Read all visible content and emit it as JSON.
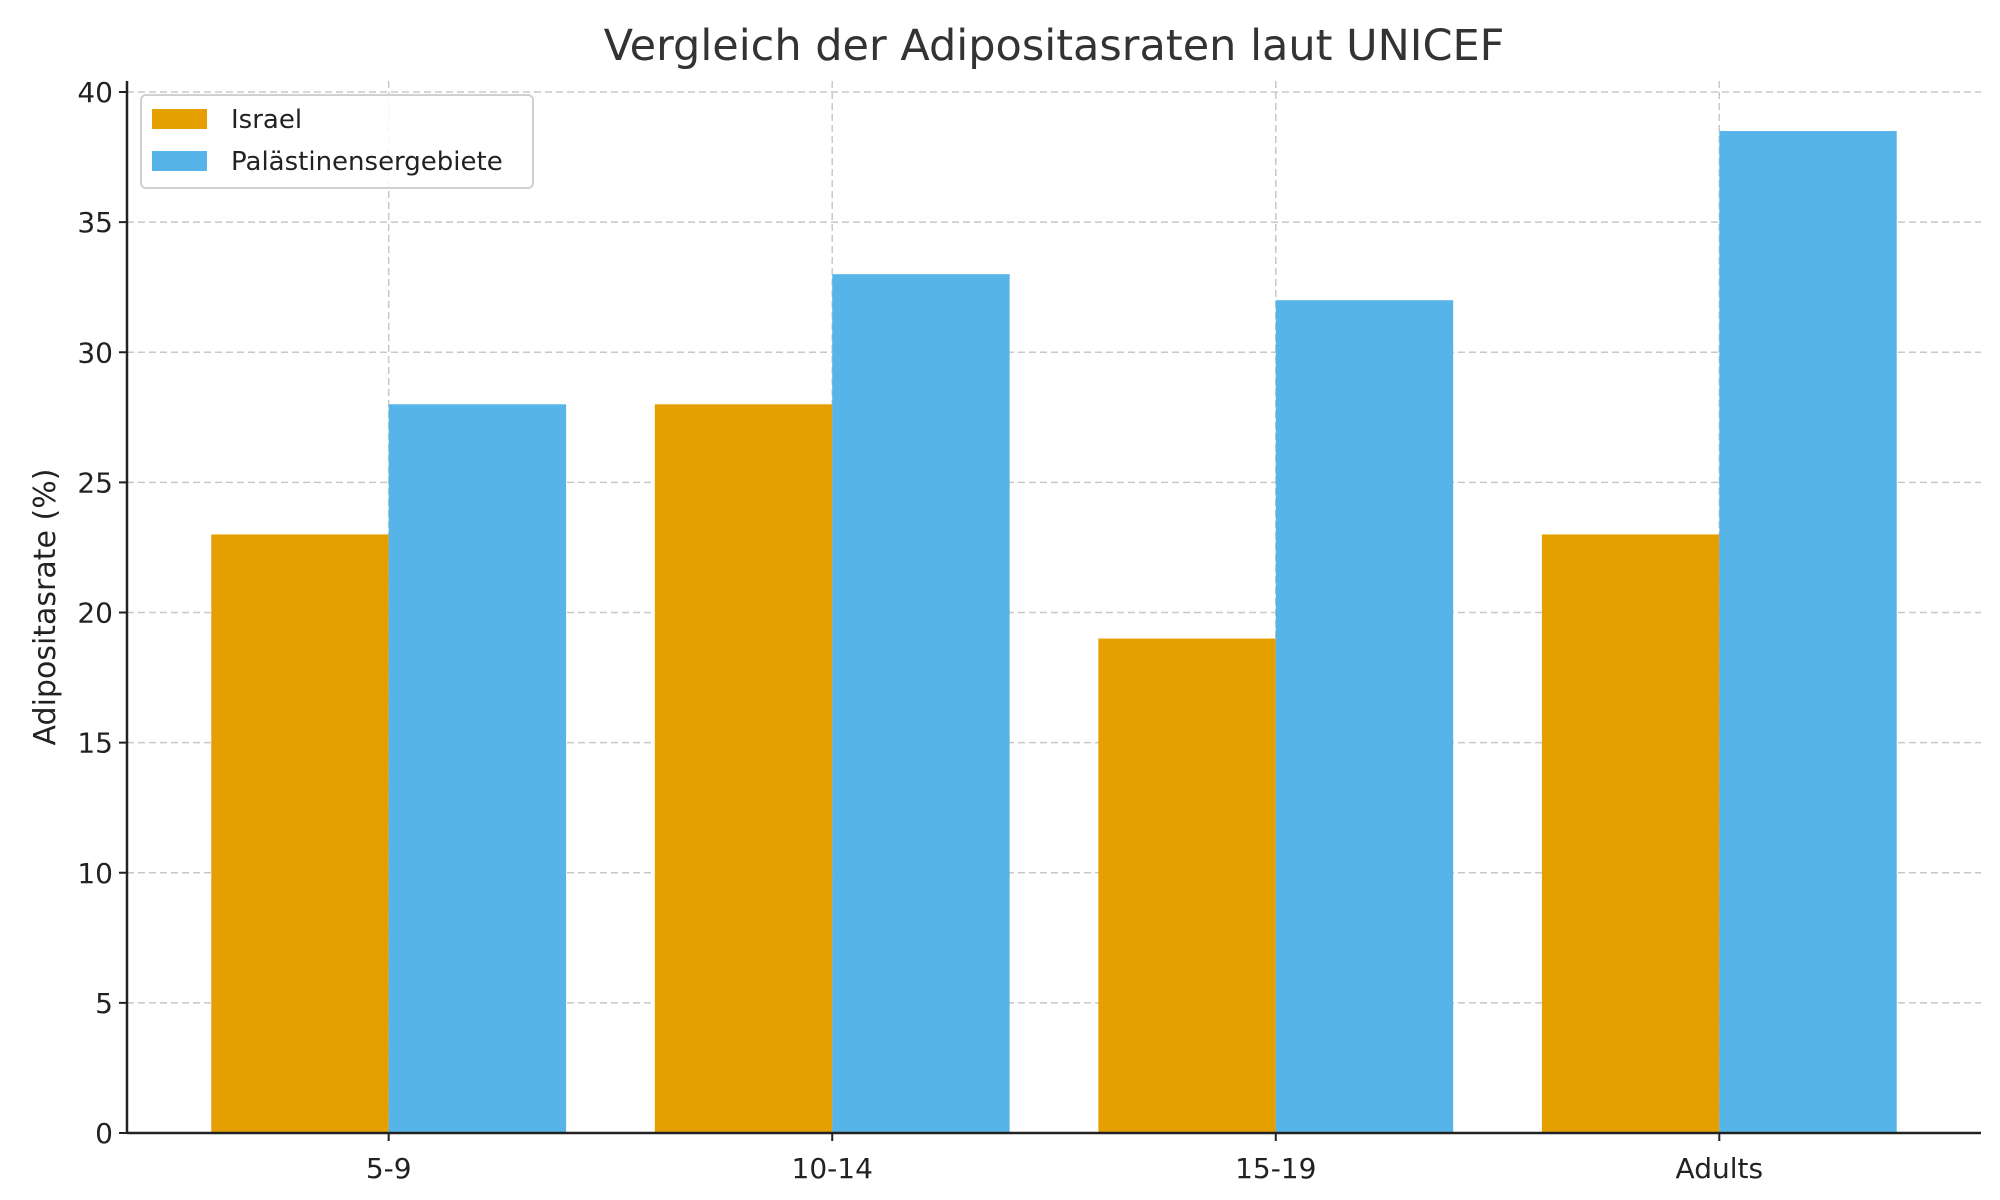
{
  "chart_data": {
    "type": "bar",
    "title": "Vergleich der Adipositasraten laut UNICEF",
    "xlabel": "",
    "ylabel": "Adipositasrate (%)",
    "categories": [
      "5-9",
      "10-14",
      "15-19",
      "Adults"
    ],
    "series": [
      {
        "name": "Israel",
        "color": "#E69F00",
        "values": [
          23,
          28,
          19,
          23
        ]
      },
      {
        "name": "Palästinensergebiete",
        "color": "#56B4E9",
        "values": [
          28,
          33,
          32,
          38.5
        ]
      }
    ],
    "ylim": [
      0,
      40
    ],
    "yticks": [
      0,
      5,
      10,
      15,
      20,
      25,
      30,
      35,
      40
    ],
    "grid": true,
    "legend_position": "top-left"
  }
}
